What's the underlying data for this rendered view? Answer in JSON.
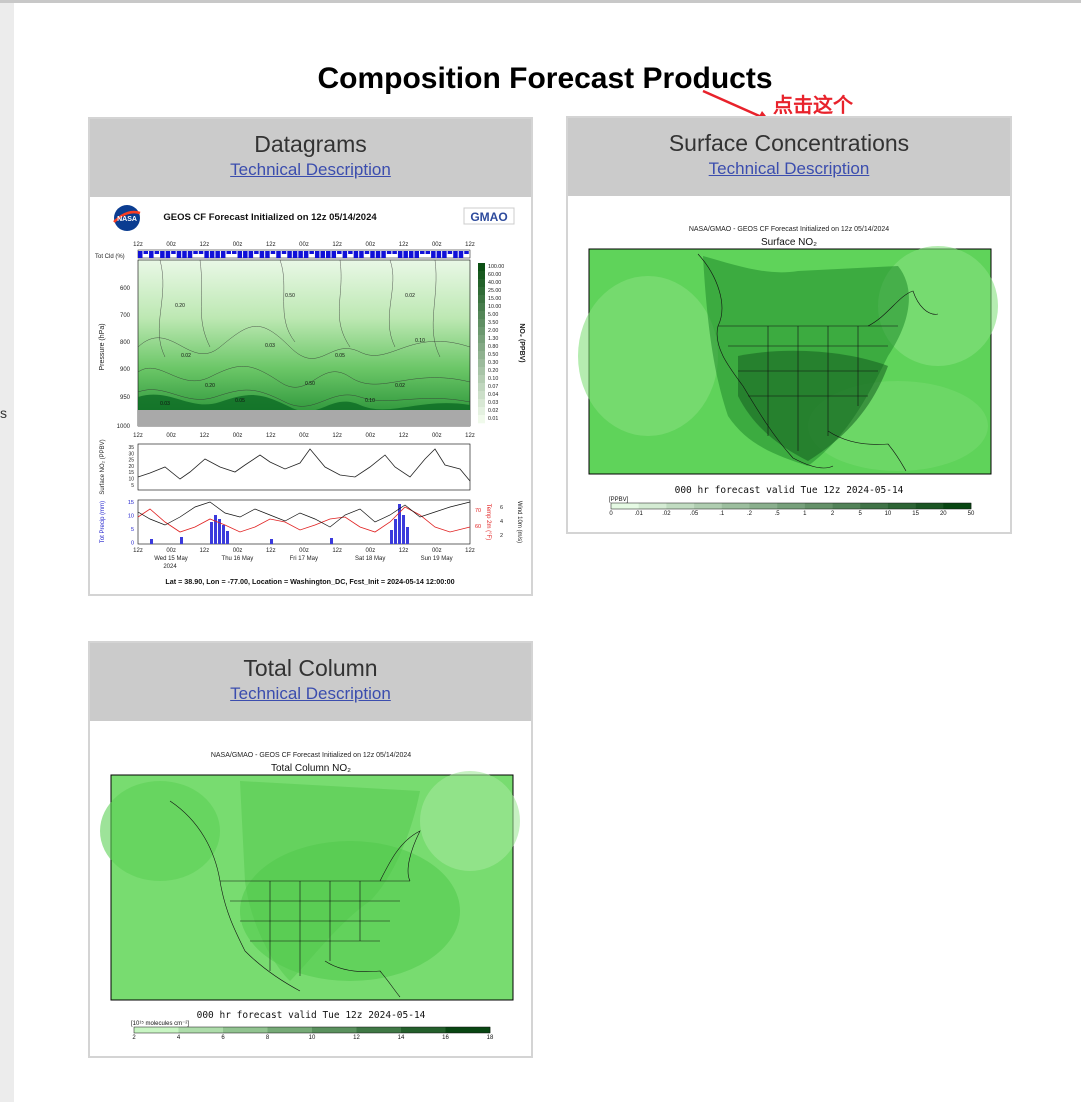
{
  "page": {
    "title": "Composition Forecast Products",
    "left_edge_letter": "s"
  },
  "annotation": {
    "text": "点击这个",
    "color": "#e8222b"
  },
  "cards": {
    "datagrams": {
      "title": "Datagrams",
      "link": "Technical Description",
      "image": {
        "header_title": "GEOS CF Forecast Initialized on 12z 05/14/2024",
        "logo_left": "NASA",
        "logo_right": "GMAO",
        "time_labels": [
          "12z",
          "00z",
          "12z",
          "00z",
          "12z",
          "00z",
          "12z",
          "00z",
          "12z",
          "00z",
          "12z"
        ],
        "cloud_label": "Tot Cld (%)",
        "pressure_label": "Pressure (hPa)",
        "pressure_ticks": [
          "600",
          "700",
          "800",
          "900",
          "950",
          "1000"
        ],
        "colorbar_unit": "NO₂ (PPBV)",
        "colorbar_ticks": [
          "100.00",
          "60.00",
          "40.00",
          "25.00",
          "15.00",
          "10.00",
          "5.00",
          "3.50",
          "2.00",
          "1.30",
          "0.80",
          "0.50",
          "0.30",
          "0.20",
          "0.10",
          "0.07",
          "0.04",
          "0.03",
          "0.02",
          "0.01"
        ],
        "contour_labels": [
          "0.02",
          "0.03",
          "0.05",
          "0.10",
          "0.20",
          "0.50"
        ],
        "surface_label": "Surface NO₂ (PPBV)",
        "surface_ticks": [
          "35",
          "30",
          "25",
          "20",
          "15",
          "10",
          "5"
        ],
        "precip_label": "Tot Precip (mm)",
        "precip_ticks": [
          "15",
          "10",
          "5",
          "0"
        ],
        "temp_label": "Temp 2m (°F)",
        "temp_ticks": [
          "70",
          "60"
        ],
        "wind_label": "Wind 10m (m/s)",
        "wind_ticks": [
          "6",
          "4",
          "2"
        ],
        "day_labels": [
          "Wed 15 May",
          "Thu 16 May",
          "Fri 17 May",
          "Sat 18 May",
          "Sun 19 May"
        ],
        "year_label": "2024",
        "footer": "Lat = 38.90, Lon = -77.00, Location = Washington_DC, Fcst_Init = 2024-05-14 12:00:00"
      }
    },
    "surface": {
      "title": "Surface Concentrations",
      "link": "Technical Description",
      "image": {
        "header": "NASA/GMAO - GEOS CF Forecast Initialized on 12z 05/14/2024",
        "map_title": "Surface NO₂",
        "valid_text": "000 hr forecast valid Tue 12z 2024-05-14",
        "unit": "[PPBV]",
        "ticks": [
          "0",
          ".01",
          ".02",
          ".05",
          ".1",
          ".2",
          ".5",
          "1",
          "2",
          "5",
          "10",
          "15",
          "20",
          "50"
        ]
      }
    },
    "column": {
      "title": "Total Column",
      "link": "Technical Description",
      "image": {
        "header": "NASA/GMAO - GEOS CF Forecast Initialized on 12z 05/14/2024",
        "map_title": "Total Column NO₂",
        "valid_text": "000 hr forecast valid Tue 12z 2024-05-14",
        "unit": "[10¹⁵ molecules cm⁻²]",
        "ticks": [
          "2",
          "4",
          "6",
          "8",
          "10",
          "12",
          "14",
          "16",
          "18"
        ]
      }
    }
  }
}
